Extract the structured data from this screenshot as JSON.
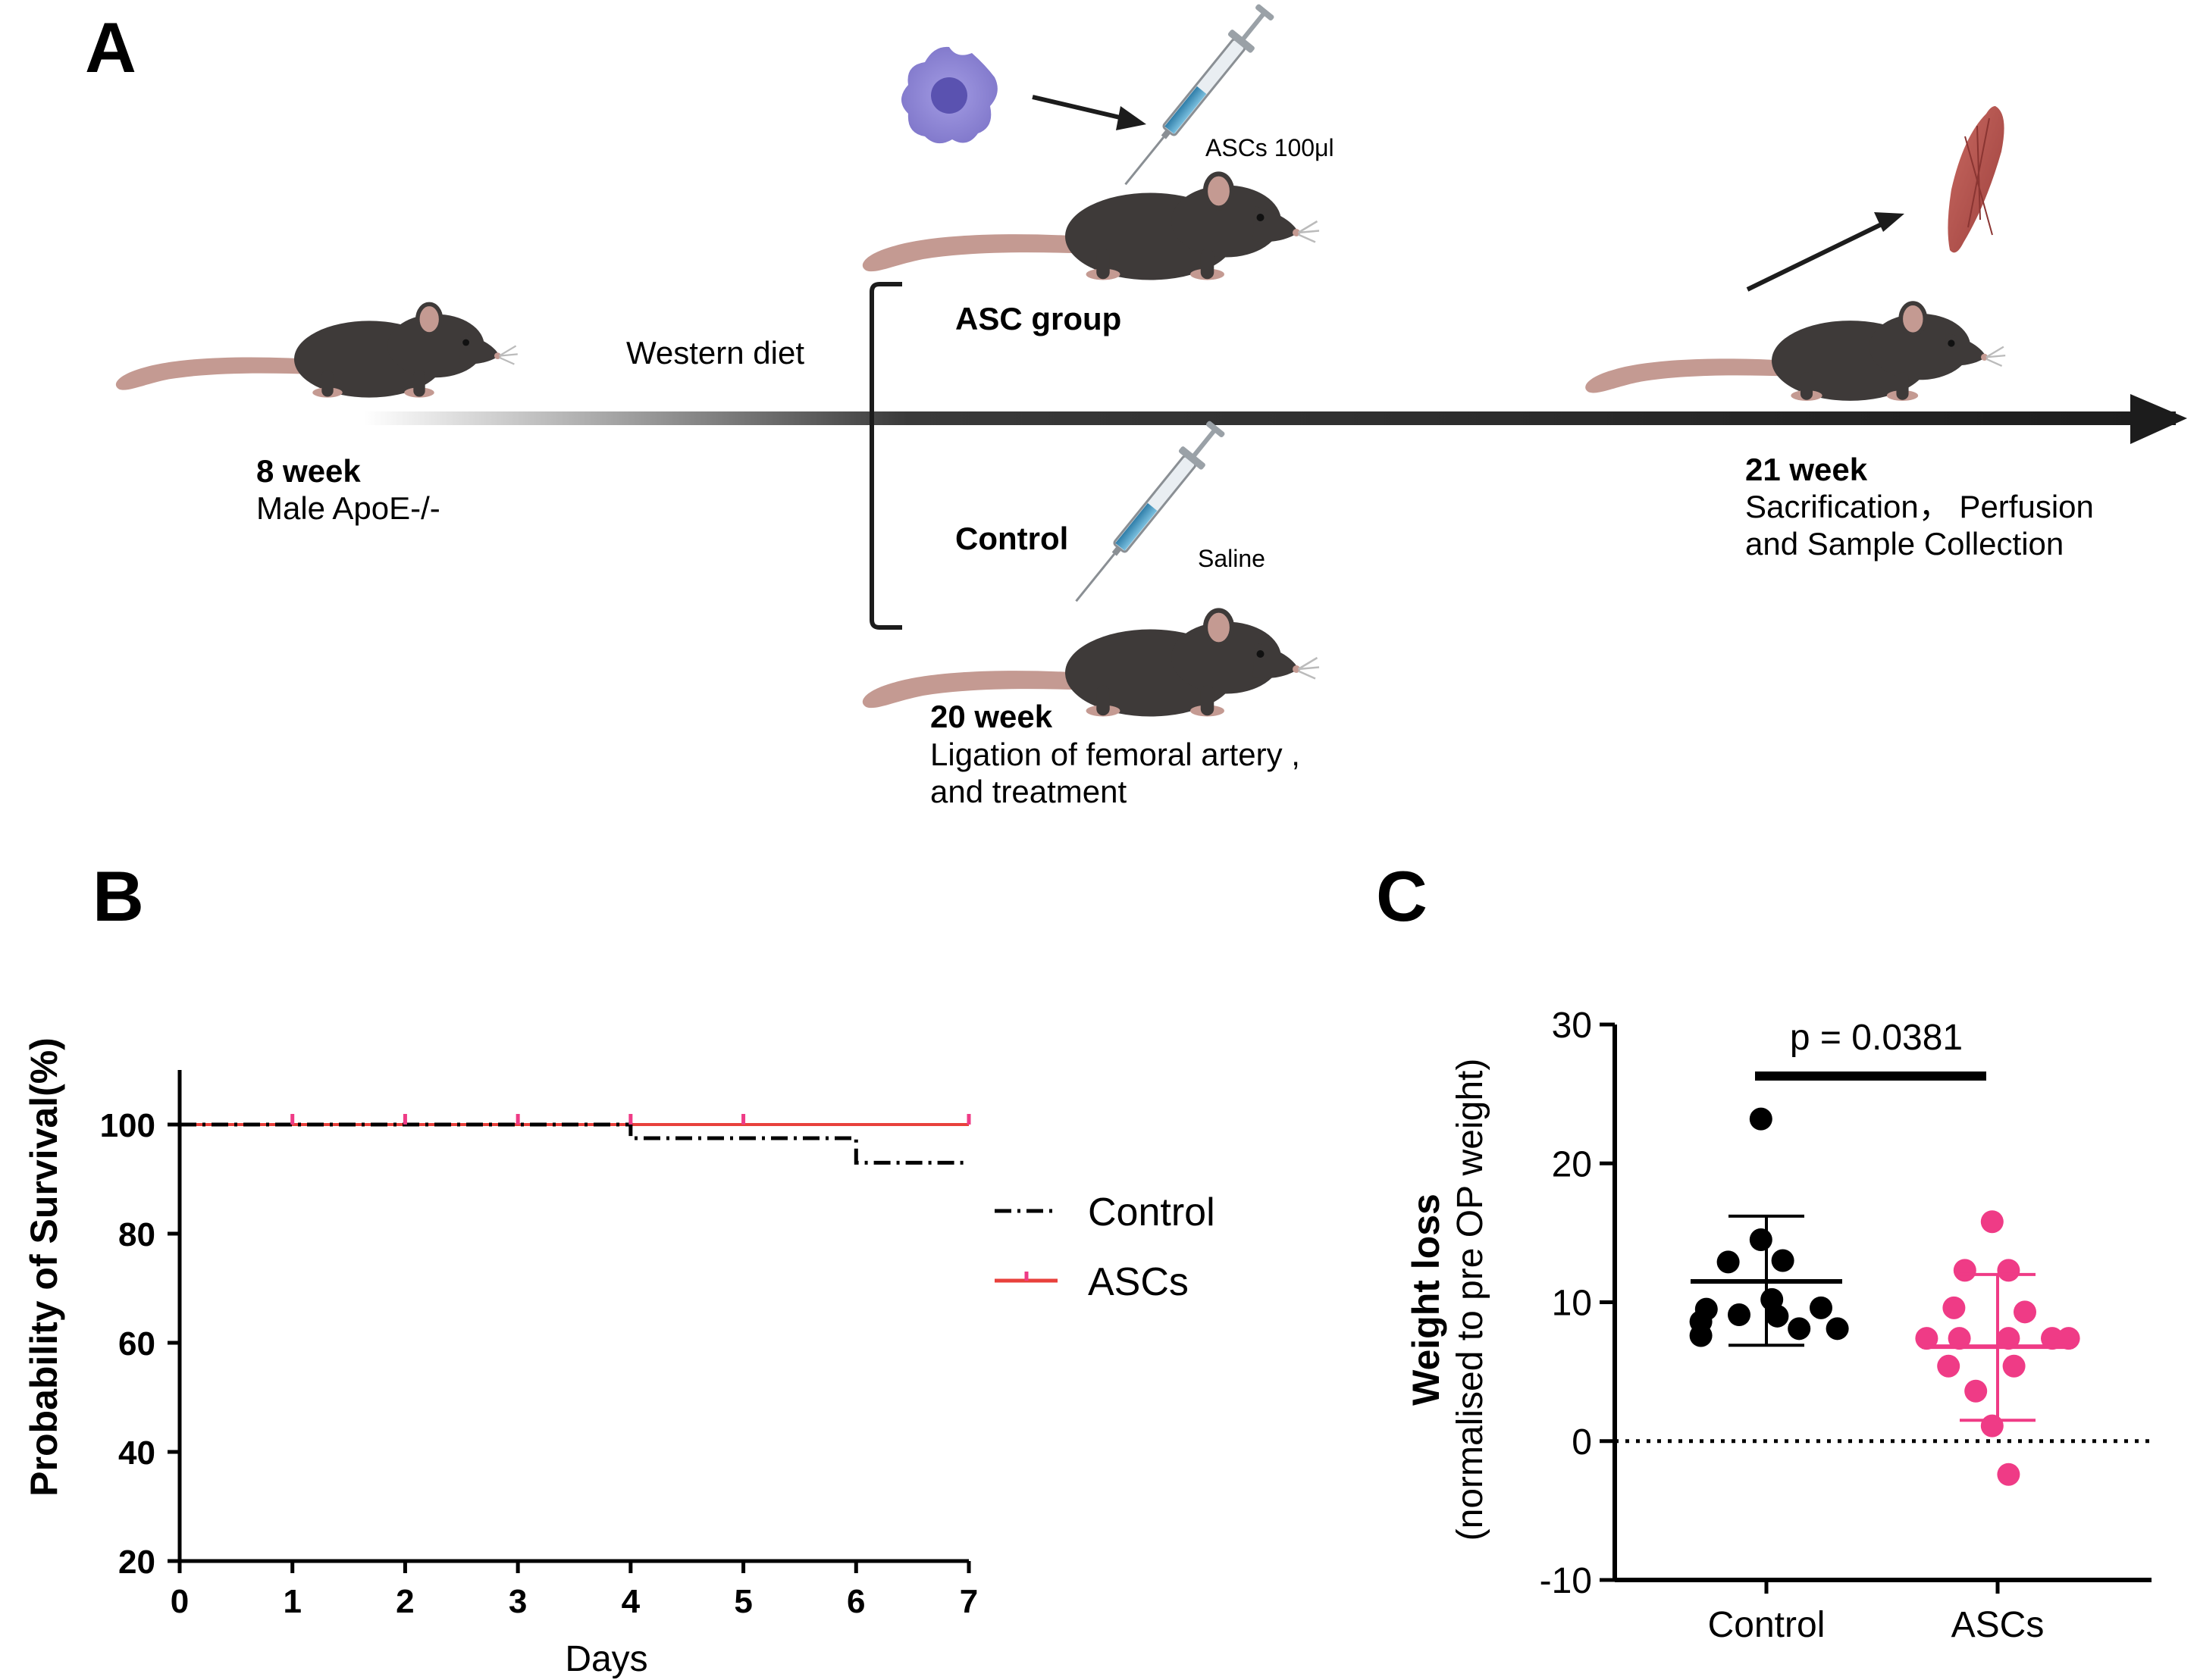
{
  "panels": {
    "a": {
      "letter": "A",
      "start": {
        "title": "8 week",
        "desc": "Male ApoE-/-"
      },
      "diet_label": "Western diet",
      "asc_group": {
        "label": "ASC group",
        "dose": "ASCs 100μl"
      },
      "control_group": {
        "label": "Control",
        "dose": "Saline"
      },
      "mid": {
        "title": "20 week",
        "line1": "Ligation of femoral artery ,",
        "line2": "and treatment"
      },
      "end": {
        "title": "21 week",
        "line1": "Sacrification，  Perfusion",
        "line2": "and Sample Collection"
      },
      "colors": {
        "mouse": "#3e3a39",
        "tail": "#c49a92",
        "cell": "#8e86d6",
        "muscle": "#b5524e",
        "arrow": "#1c1c1c"
      }
    },
    "b": {
      "letter": "B"
    },
    "c": {
      "letter": "C"
    }
  },
  "chart_data": [
    {
      "type": "line",
      "title": "",
      "xlabel": "Days",
      "ylabel": "Probability of Survival(%)",
      "xlim": [
        0,
        7
      ],
      "ylim": [
        20,
        110
      ],
      "xticks": [
        0,
        1,
        2,
        3,
        4,
        5,
        6,
        7
      ],
      "yticks": [
        20,
        40,
        60,
        80,
        100
      ],
      "xtick_labels": [
        "0",
        "1",
        "2",
        "3",
        "4",
        "5",
        "6",
        "7"
      ],
      "ytick_labels": [
        "20",
        "40",
        "60",
        "80",
        "100"
      ],
      "legend_position": "right",
      "series": [
        {
          "name": "Control",
          "style": "dash-dot",
          "color": "#000000",
          "steps": [
            [
              0,
              100
            ],
            [
              4,
              97.5
            ],
            [
              6,
              93
            ],
            [
              7,
              93
            ]
          ]
        },
        {
          "name": "ASCs",
          "style": "solid",
          "color": "#e8413c",
          "steps": [
            [
              0,
              100
            ],
            [
              7,
              100
            ]
          ],
          "censor_marks": [
            1,
            2,
            3,
            4,
            5,
            7
          ]
        }
      ]
    },
    {
      "type": "scatter",
      "title": "",
      "ylabel": "Weight loss",
      "ylabel_sub": "(normalised to pre OP weight)",
      "ylim": [
        -10,
        30
      ],
      "yticks": [
        -10,
        0,
        10,
        20,
        30
      ],
      "ytick_labels": [
        "-10",
        "0",
        "10",
        "20",
        "30"
      ],
      "categories": [
        "Control",
        "ASCs"
      ],
      "annotation": "p = 0.0381",
      "reference_line": 0,
      "series": [
        {
          "name": "Control",
          "color": "#000000",
          "mean": 11.5,
          "sd_low": 6.9,
          "sd_high": 16.2,
          "points": [
            [
              -0.02,
              23.2
            ],
            [
              -0.24,
              8.6
            ],
            [
              -0.22,
              9.5
            ],
            [
              -0.24,
              7.6
            ],
            [
              -0.14,
              12.9
            ],
            [
              -0.1,
              9.1
            ],
            [
              -0.02,
              14.5
            ],
            [
              0.04,
              9.0
            ],
            [
              0.02,
              10.2
            ],
            [
              0.06,
              13.0
            ],
            [
              0.12,
              8.1
            ],
            [
              0.2,
              9.6
            ],
            [
              0.26,
              8.1
            ]
          ]
        },
        {
          "name": "ASCs",
          "color": "#ef3b86",
          "mean": 6.8,
          "sd_low": 1.5,
          "sd_high": 12.0,
          "points": [
            [
              -0.02,
              15.8
            ],
            [
              -0.12,
              12.3
            ],
            [
              0.04,
              12.3
            ],
            [
              -0.16,
              9.6
            ],
            [
              0.1,
              9.3
            ],
            [
              -0.26,
              7.4
            ],
            [
              -0.14,
              7.4
            ],
            [
              0.04,
              7.4
            ],
            [
              0.2,
              7.4
            ],
            [
              0.26,
              7.4
            ],
            [
              -0.18,
              5.4
            ],
            [
              0.06,
              5.4
            ],
            [
              -0.08,
              3.6
            ],
            [
              -0.02,
              1.1
            ],
            [
              0.04,
              -2.4
            ]
          ]
        }
      ]
    }
  ]
}
